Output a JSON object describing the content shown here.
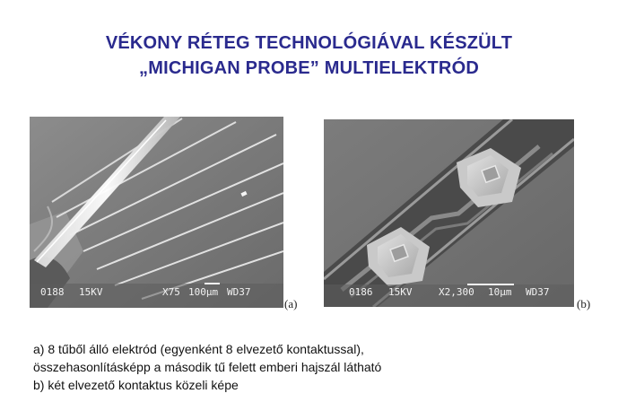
{
  "title": {
    "line1": "VÉKONY RÉTEG TECHNOLÓGIÁVAL KÉSZÜLT",
    "line2": "„MICHIGAN PROBE” MULTIELEKTRÓD"
  },
  "figures": [
    {
      "id": "a",
      "label": "(a)",
      "databar": {
        "image_no": "0188",
        "voltage": "15KV",
        "magnification": "X75",
        "scale": "100µm",
        "wd": "WD37"
      }
    },
    {
      "id": "b",
      "label": "(b)",
      "databar": {
        "image_no": "0186",
        "voltage": "15KV",
        "magnification": "X2,300",
        "scale": "10µm",
        "wd": "WD37"
      }
    }
  ],
  "caption": {
    "line1": "a) 8 tűből álló elektród (egyenként 8 elvezető kontaktussal),",
    "line2": "összehasonlításképp a második tű felett emberi hajszál látható",
    "line3": "b) két elvezető kontaktus közeli képe"
  },
  "colors": {
    "title": "#2a2a8e",
    "sem_background": "#6e6e6e"
  }
}
